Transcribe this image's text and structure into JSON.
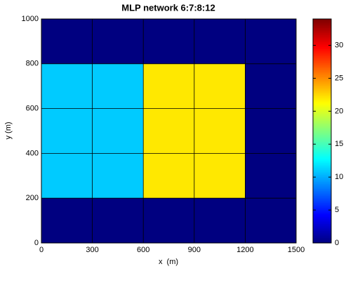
{
  "chart_data": {
    "type": "heatmap",
    "title": "MLP network 6:7:8:12",
    "x_label": "x  (m)",
    "y_label": "y (m)",
    "xbins": [
      0,
      300,
      600,
      900,
      1200,
      1500
    ],
    "ybins": [
      0,
      200,
      400,
      600,
      800,
      1000
    ],
    "values": [
      [
        0,
        0,
        0,
        0,
        0
      ],
      [
        11,
        11,
        22,
        22,
        0
      ],
      [
        11,
        11,
        22,
        22,
        0
      ],
      [
        11,
        11,
        22,
        22,
        0
      ],
      [
        0,
        0,
        0,
        0,
        0
      ]
    ],
    "xlim": [
      0,
      1500
    ],
    "xticks": [
      0,
      300,
      600,
      900,
      1200,
      1500
    ],
    "ylim": [
      0,
      1000
    ],
    "yticks": [
      0,
      200,
      400,
      600,
      800,
      1000
    ],
    "clim": [
      0,
      34
    ],
    "cticks": [
      0,
      5,
      10,
      15,
      20,
      25,
      30
    ],
    "colormap": "jet",
    "grid": true
  }
}
